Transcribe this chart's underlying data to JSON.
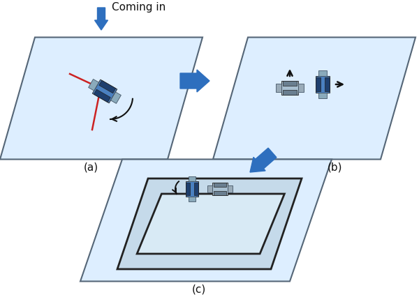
{
  "bg_color": "#ffffff",
  "para_fill": "#ddeeff",
  "para_edge": "#556677",
  "window_fill_outer": "#c5daea",
  "window_fill_inner": "#d8eaf5",
  "window_edge": "#222222",
  "robot_blue_body": "#4a80c0",
  "robot_blue_dark": "#1e3f6e",
  "robot_gray_body": "#a8bfd0",
  "robot_gray_dark": "#6a7f90",
  "robot_side": "#8aaabb",
  "robot_side_gray": "#9aabb8",
  "arrow_blue": "#2e6fbe",
  "arrow_black": "#111111",
  "red_line": "#cc2222",
  "label_a": "(a)",
  "label_b": "(b)",
  "label_c": "(c)",
  "coming_in": "Coming in",
  "font_size": 11
}
